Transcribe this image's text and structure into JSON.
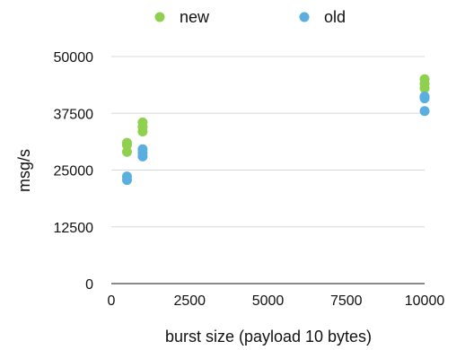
{
  "chart_data": {
    "type": "scatter",
    "xlabel": "burst size (payload 10 bytes)",
    "ylabel": "msg/s",
    "xlim": [
      0,
      10000
    ],
    "ylim": [
      0,
      50000
    ],
    "x_ticks": [
      "0",
      "2500",
      "5000",
      "7500",
      "10000"
    ],
    "y_ticks": [
      "0",
      "12500",
      "25000",
      "37500",
      "50000"
    ],
    "grid": "horizontal",
    "legend_position": "top",
    "series": [
      {
        "name": "new",
        "color": "#8fd14f",
        "points": [
          {
            "x": 500,
            "y": 29000
          },
          {
            "x": 500,
            "y": 30500
          },
          {
            "x": 500,
            "y": 31000
          },
          {
            "x": 1000,
            "y": 33500
          },
          {
            "x": 1000,
            "y": 34500
          },
          {
            "x": 1000,
            "y": 35500
          },
          {
            "x": 10000,
            "y": 43000
          },
          {
            "x": 10000,
            "y": 44000
          },
          {
            "x": 10000,
            "y": 45000
          }
        ]
      },
      {
        "name": "old",
        "color": "#5aafdf",
        "points": [
          {
            "x": 500,
            "y": 22800
          },
          {
            "x": 500,
            "y": 23600
          },
          {
            "x": 1000,
            "y": 28000
          },
          {
            "x": 1000,
            "y": 28800
          },
          {
            "x": 1000,
            "y": 29600
          },
          {
            "x": 10000,
            "y": 38000
          },
          {
            "x": 10000,
            "y": 40800
          },
          {
            "x": 10000,
            "y": 41200
          }
        ]
      }
    ]
  }
}
